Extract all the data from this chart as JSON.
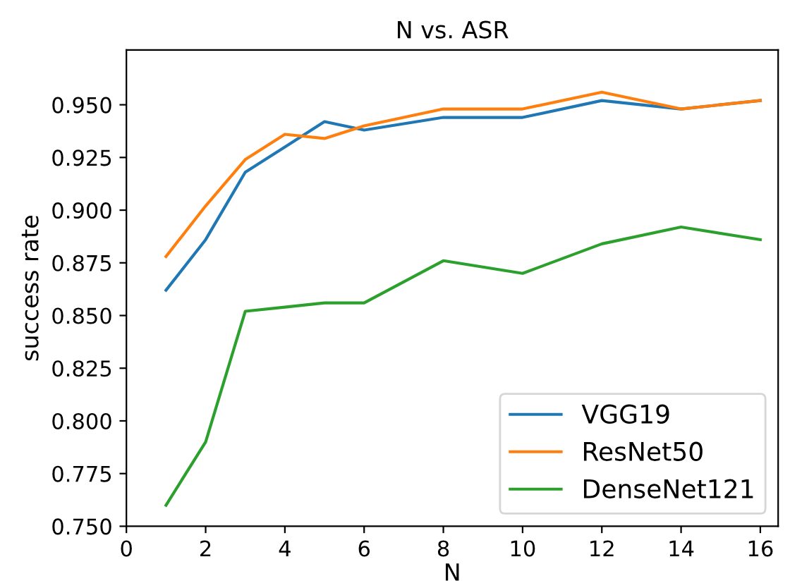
{
  "chart_data": {
    "type": "line",
    "title": "N vs. ASR",
    "xlabel": "N",
    "ylabel": "success rate",
    "x": [
      1,
      2,
      3,
      4,
      5,
      6,
      8,
      10,
      12,
      14,
      16
    ],
    "series": [
      {
        "name": "VGG19",
        "color": "#1f77b4",
        "values": [
          0.862,
          0.886,
          0.918,
          0.93,
          0.942,
          0.938,
          0.944,
          0.944,
          0.952,
          0.948,
          0.952
        ]
      },
      {
        "name": "ResNet50",
        "color": "#ff7f0e",
        "values": [
          0.878,
          0.902,
          0.924,
          0.936,
          0.934,
          0.94,
          0.948,
          0.948,
          0.956,
          0.948,
          0.952
        ]
      },
      {
        "name": "DenseNet121",
        "color": "#2ca02c",
        "values": [
          0.76,
          0.79,
          0.852,
          0.854,
          0.856,
          0.856,
          0.876,
          0.87,
          0.884,
          0.892,
          0.886
        ]
      }
    ],
    "xlim": [
      0,
      16.45
    ],
    "ylim": [
      0.75,
      0.976
    ],
    "xticks": [
      0,
      2,
      4,
      6,
      8,
      10,
      12,
      14,
      16
    ],
    "yticks": [
      {
        "value": 0.75,
        "label": "0.750"
      },
      {
        "value": 0.775,
        "label": "0.775"
      },
      {
        "value": 0.8,
        "label": "0.800"
      },
      {
        "value": 0.825,
        "label": "0.825"
      },
      {
        "value": 0.85,
        "label": "0.850"
      },
      {
        "value": 0.875,
        "label": "0.875"
      },
      {
        "value": 0.9,
        "label": "0.900"
      },
      {
        "value": 0.925,
        "label": "0.925"
      },
      {
        "value": 0.95,
        "label": "0.950"
      }
    ],
    "legend": "bottom right",
    "grid": false,
    "marker": "none",
    "line_style": "solid"
  }
}
